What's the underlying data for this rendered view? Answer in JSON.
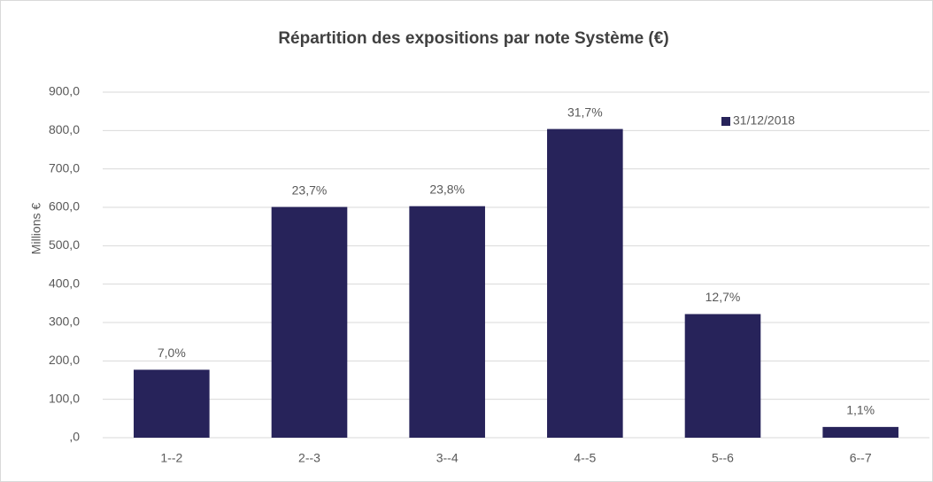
{
  "chart_data": {
    "type": "bar",
    "title": "Répartition des expositions par note Système (€)",
    "ylabel": "Millions €",
    "categories": [
      "1--2",
      "2--3",
      "3--4",
      "4--5",
      "5--6",
      "6--7"
    ],
    "series": [
      {
        "name": "31/12/2018",
        "color": "#27235a",
        "values": [
          177,
          601,
          603,
          804,
          322,
          28
        ]
      }
    ],
    "data_labels": [
      "7,0%",
      "23,7%",
      "23,8%",
      "31,7%",
      "12,7%",
      "1,1%"
    ],
    "ylim": [
      0,
      900
    ],
    "yticks": [
      {
        "value": 0,
        "label": ",0"
      },
      {
        "value": 100,
        "label": "100,0"
      },
      {
        "value": 200,
        "label": "200,0"
      },
      {
        "value": 300,
        "label": "300,0"
      },
      {
        "value": 400,
        "label": "400,0"
      },
      {
        "value": 500,
        "label": "500,0"
      },
      {
        "value": 600,
        "label": "600,0"
      },
      {
        "value": 700,
        "label": "700,0"
      },
      {
        "value": 800,
        "label": "800,0"
      },
      {
        "value": 900,
        "label": "900,0"
      }
    ],
    "grid": true,
    "legend": "top-right"
  }
}
